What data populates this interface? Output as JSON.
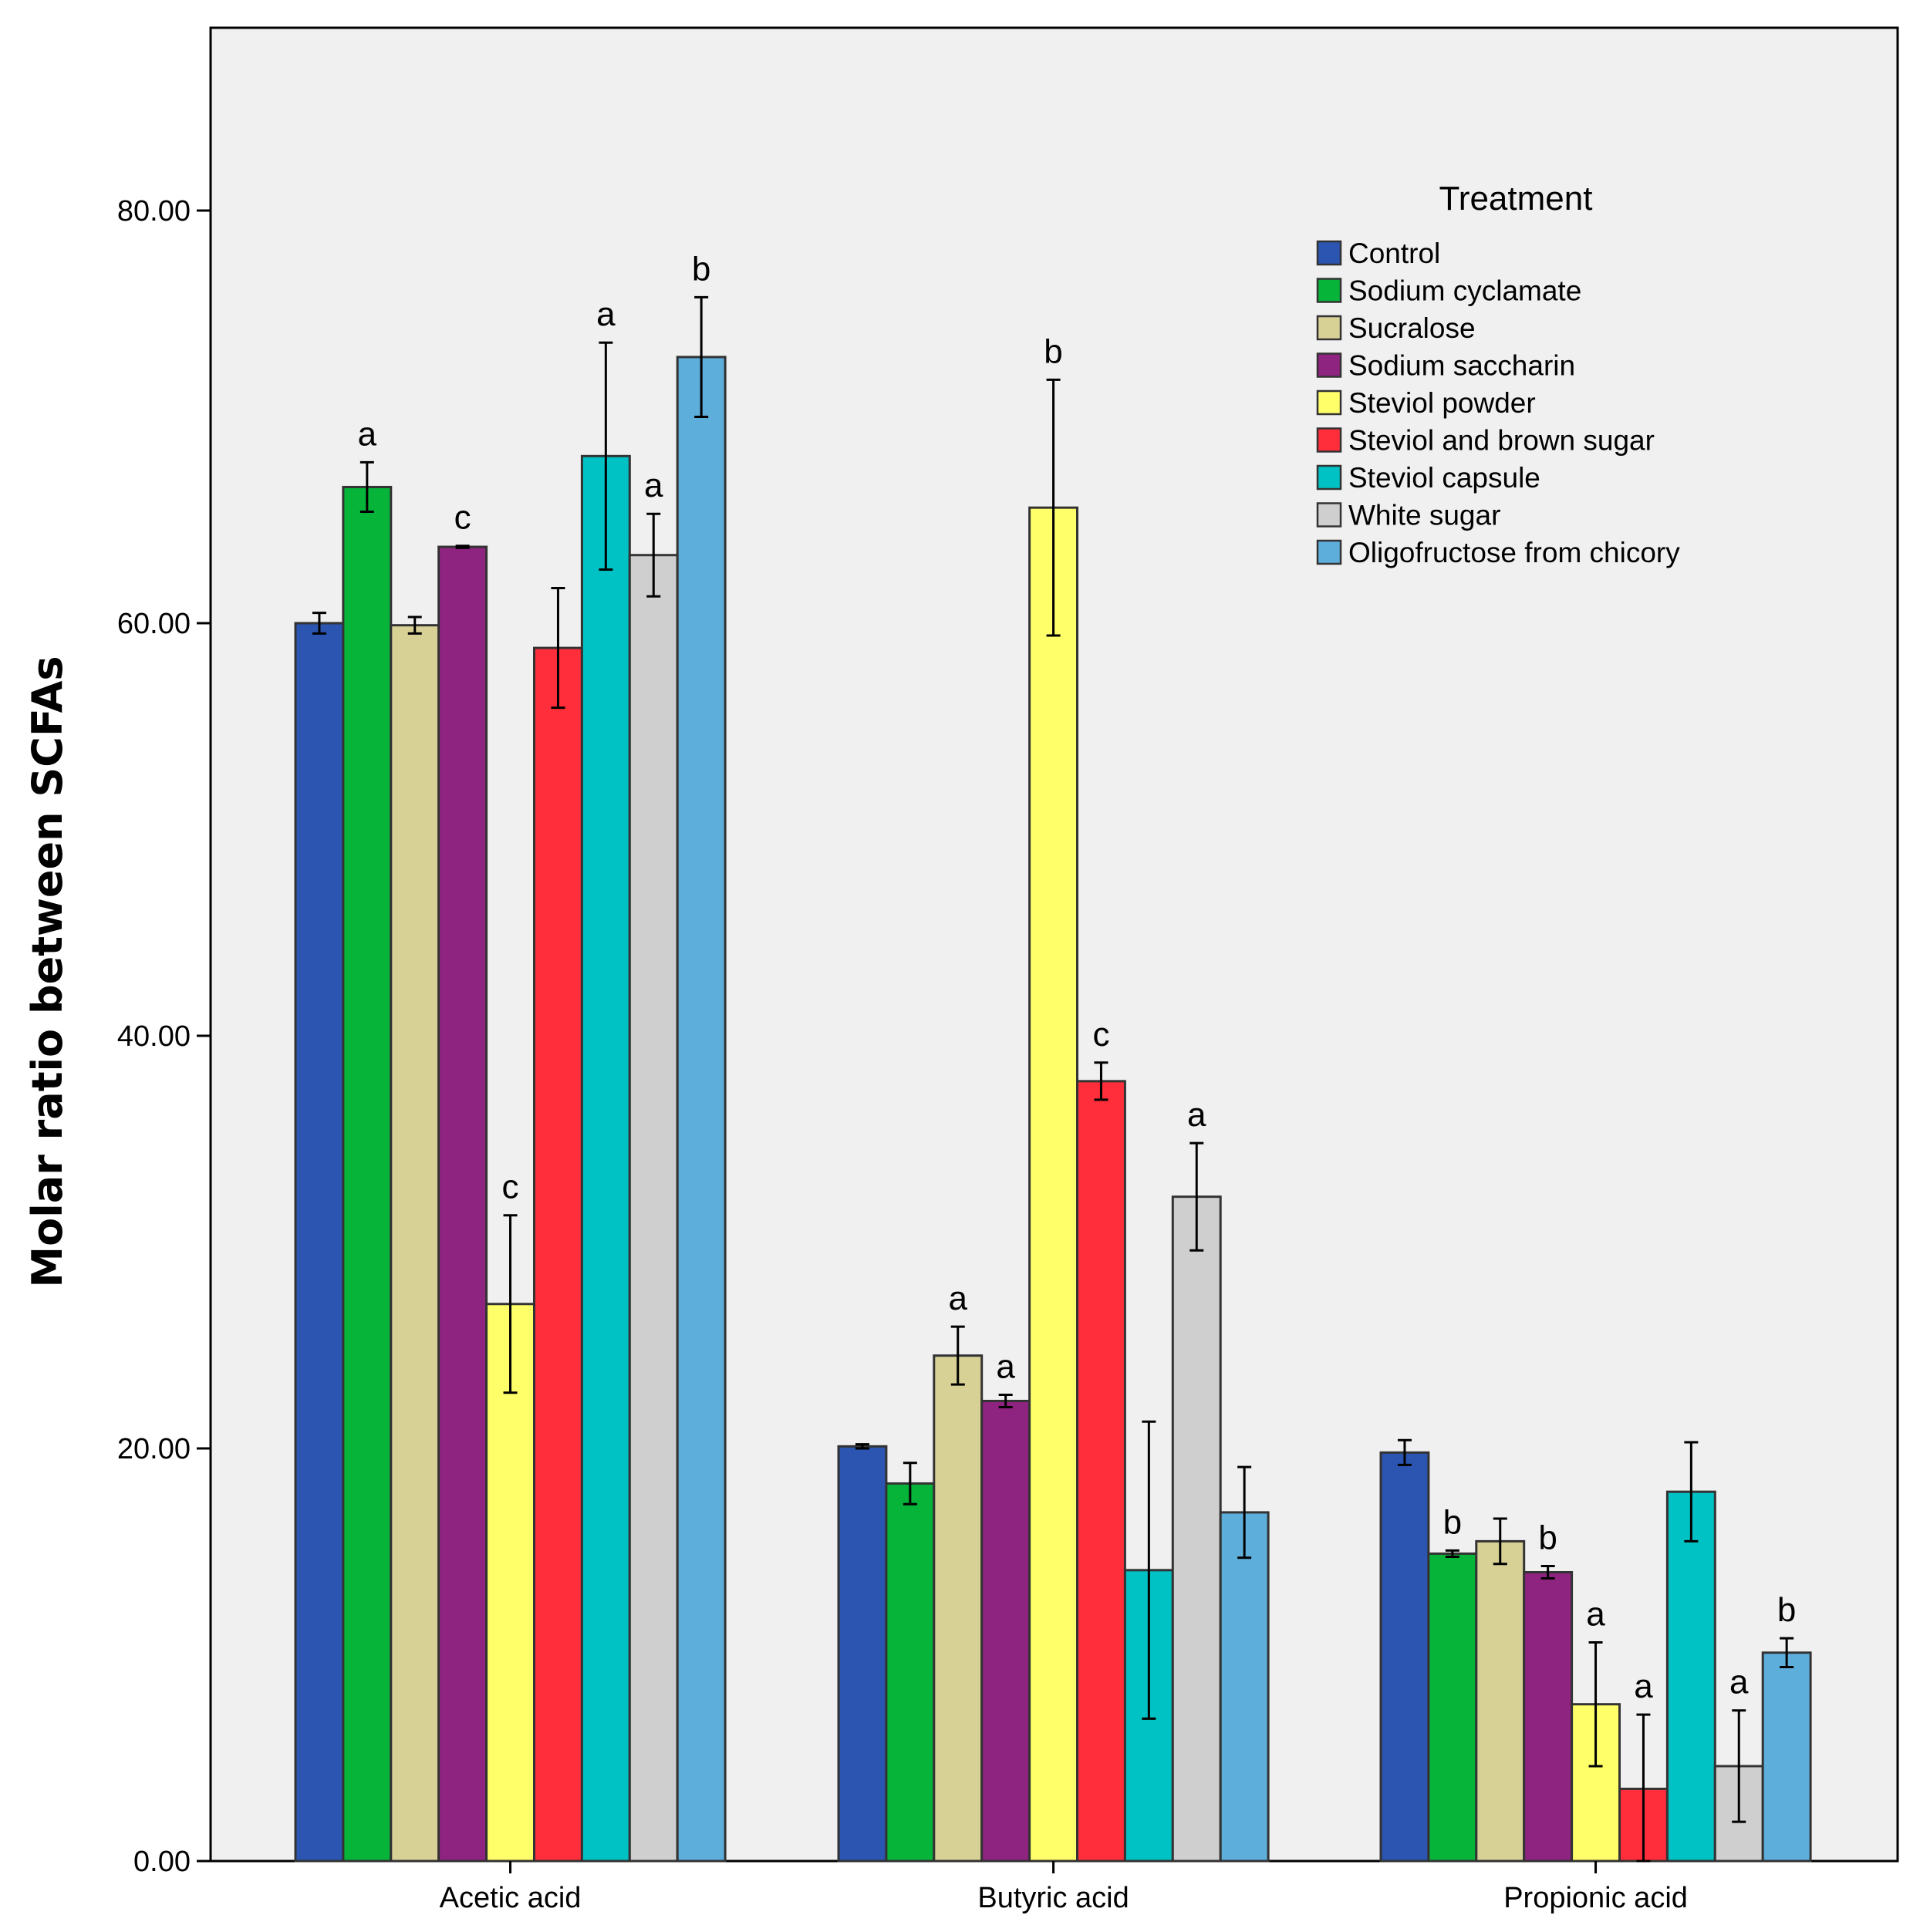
{
  "chart_data": {
    "type": "bar",
    "title": "",
    "xlabel": "",
    "ylabel": "Molar ratio between SCFAs",
    "ylim": [
      0,
      89
    ],
    "yticks": [
      0,
      20,
      40,
      60,
      80
    ],
    "ytick_labels": [
      "0.00",
      "20.00",
      "40.00",
      "60.00",
      "80.00"
    ],
    "grid": false,
    "legend_position": "top-right",
    "legend_title": "Treatment",
    "categories": [
      "Acetic acid",
      "Butyric acid",
      "Propionic acid"
    ],
    "series": [
      {
        "name": "Control",
        "color": "#2b55b0",
        "values": [
          60.0,
          20.1,
          19.8
        ],
        "errors": [
          0.5,
          0.1,
          0.6
        ],
        "letters": [
          "",
          "",
          ""
        ]
      },
      {
        "name": "Sodium cyclamate",
        "color": "#06b43a",
        "values": [
          66.6,
          18.3,
          14.9
        ],
        "errors": [
          1.2,
          1.0,
          0.15
        ],
        "letters": [
          "a",
          "",
          "b"
        ]
      },
      {
        "name": "Sucralose",
        "color": "#d7d196",
        "values": [
          59.9,
          24.5,
          15.5
        ],
        "errors": [
          0.4,
          1.4,
          1.1
        ],
        "letters": [
          "",
          "a",
          ""
        ]
      },
      {
        "name": "Sodium saccharin",
        "color": "#8e2380",
        "values": [
          63.7,
          22.3,
          14.0
        ],
        "errors": [
          0.05,
          0.3,
          0.3
        ],
        "letters": [
          "c",
          "a",
          "b"
        ]
      },
      {
        "name": "Steviol powder",
        "color": "#ffff6a",
        "values": [
          27.0,
          65.6,
          7.6
        ],
        "errors": [
          4.3,
          6.2,
          3.0
        ],
        "letters": [
          "c",
          "b",
          "a"
        ]
      },
      {
        "name": "Steviol and brown sugar",
        "color": "#ff2e3a",
        "values": [
          58.8,
          37.8,
          3.5
        ],
        "errors": [
          2.9,
          0.9,
          3.6
        ],
        "letters": [
          "",
          "c",
          "a"
        ]
      },
      {
        "name": "Steviol capsule",
        "color": "#00c1c3",
        "values": [
          68.1,
          14.1,
          17.9
        ],
        "errors": [
          5.5,
          7.2,
          2.4
        ],
        "letters": [
          "a",
          "",
          ""
        ]
      },
      {
        "name": "White sugar",
        "color": "#cfcfcf",
        "values": [
          63.3,
          32.2,
          4.6
        ],
        "errors": [
          2.0,
          2.6,
          2.7
        ],
        "letters": [
          "a",
          "a",
          "a"
        ]
      },
      {
        "name": "Oligofructose from chicory",
        "color": "#5eaedc",
        "values": [
          72.9,
          16.9,
          10.1
        ],
        "errors": [
          2.9,
          2.2,
          0.7
        ],
        "letters": [
          "b",
          "",
          "b"
        ]
      }
    ]
  }
}
